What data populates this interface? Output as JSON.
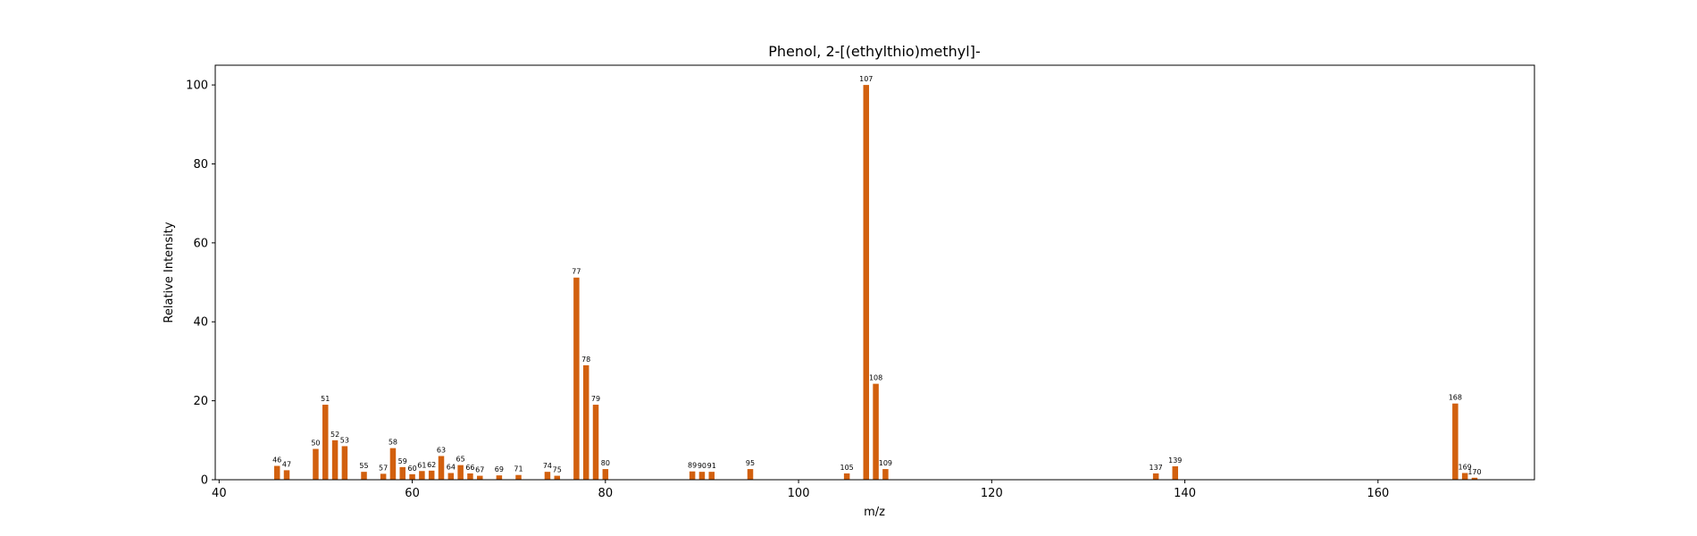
{
  "chart_data": {
    "type": "bar",
    "title": "Phenol, 2-[(ethylthio)methyl]-",
    "xlabel": "m/z",
    "ylabel": "Relative Intensity",
    "xlim": [
      39.6,
      176.2
    ],
    "ylim": [
      0,
      105
    ],
    "xticks": [
      40,
      60,
      80,
      100,
      120,
      140,
      160
    ],
    "yticks": [
      0,
      20,
      40,
      60,
      80,
      100
    ],
    "grid": false,
    "bar_color": "#d2600e",
    "points": [
      {
        "x": 46,
        "y": 3.5
      },
      {
        "x": 47,
        "y": 2.4
      },
      {
        "x": 50,
        "y": 7.8
      },
      {
        "x": 51,
        "y": 19.0
      },
      {
        "x": 52,
        "y": 10.0
      },
      {
        "x": 53,
        "y": 8.5
      },
      {
        "x": 55,
        "y": 2.0
      },
      {
        "x": 57,
        "y": 1.5
      },
      {
        "x": 58,
        "y": 8.0
      },
      {
        "x": 59,
        "y": 3.2
      },
      {
        "x": 60,
        "y": 1.4
      },
      {
        "x": 61,
        "y": 2.2
      },
      {
        "x": 62,
        "y": 2.3
      },
      {
        "x": 63,
        "y": 6.0
      },
      {
        "x": 64,
        "y": 1.7
      },
      {
        "x": 65,
        "y": 3.7
      },
      {
        "x": 66,
        "y": 1.6
      },
      {
        "x": 67,
        "y": 1.0
      },
      {
        "x": 69,
        "y": 1.1
      },
      {
        "x": 71,
        "y": 1.2
      },
      {
        "x": 74,
        "y": 2.0
      },
      {
        "x": 75,
        "y": 1.0
      },
      {
        "x": 77,
        "y": 51.2
      },
      {
        "x": 78,
        "y": 29.0
      },
      {
        "x": 79,
        "y": 19.0
      },
      {
        "x": 80,
        "y": 2.7
      },
      {
        "x": 89,
        "y": 2.1
      },
      {
        "x": 90,
        "y": 2.0
      },
      {
        "x": 91,
        "y": 2.0
      },
      {
        "x": 95,
        "y": 2.7
      },
      {
        "x": 105,
        "y": 1.6
      },
      {
        "x": 107,
        "y": 100.0
      },
      {
        "x": 108,
        "y": 24.3
      },
      {
        "x": 109,
        "y": 2.7
      },
      {
        "x": 137,
        "y": 1.6
      },
      {
        "x": 139,
        "y": 3.4
      },
      {
        "x": 168,
        "y": 19.3
      },
      {
        "x": 169,
        "y": 1.7
      },
      {
        "x": 170,
        "y": 0.5
      }
    ]
  }
}
